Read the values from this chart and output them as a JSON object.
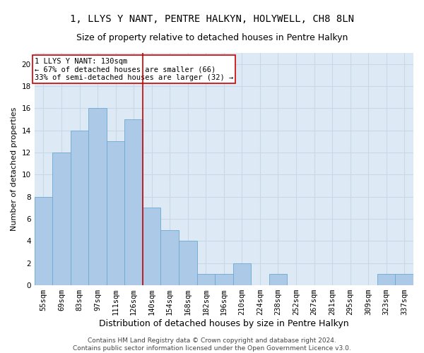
{
  "title": "1, LLYS Y NANT, PENTRE HALKYN, HOLYWELL, CH8 8LN",
  "subtitle": "Size of property relative to detached houses in Pentre Halkyn",
  "xlabel": "Distribution of detached houses by size in Pentre Halkyn",
  "ylabel": "Number of detached properties",
  "categories": [
    "55sqm",
    "69sqm",
    "83sqm",
    "97sqm",
    "111sqm",
    "126sqm",
    "140sqm",
    "154sqm",
    "168sqm",
    "182sqm",
    "196sqm",
    "210sqm",
    "224sqm",
    "238sqm",
    "252sqm",
    "267sqm",
    "281sqm",
    "295sqm",
    "309sqm",
    "323sqm",
    "337sqm"
  ],
  "values": [
    8,
    12,
    14,
    16,
    13,
    15,
    7,
    5,
    4,
    1,
    1,
    2,
    0,
    1,
    0,
    0,
    0,
    0,
    0,
    1,
    1
  ],
  "bar_color": "#adc9e8",
  "bar_edge_color": "#6baad0",
  "grid_color": "#c8d8e8",
  "bg_color": "#ddeaf6",
  "vline_x": 5.5,
  "vline_color": "#cc0000",
  "annotation_text": "1 LLYS Y NANT: 130sqm\n← 67% of detached houses are smaller (66)\n33% of semi-detached houses are larger (32) →",
  "annotation_box_color": "#ffffff",
  "annotation_box_edge": "#cc0000",
  "ylim": [
    0,
    21
  ],
  "yticks": [
    0,
    2,
    4,
    6,
    8,
    10,
    12,
    14,
    16,
    18,
    20
  ],
  "footer": "Contains HM Land Registry data © Crown copyright and database right 2024.\nContains public sector information licensed under the Open Government Licence v3.0.",
  "title_fontsize": 10,
  "subtitle_fontsize": 9,
  "xlabel_fontsize": 9,
  "ylabel_fontsize": 8,
  "tick_fontsize": 7.5,
  "annotation_fontsize": 7.5,
  "footer_fontsize": 6.5
}
